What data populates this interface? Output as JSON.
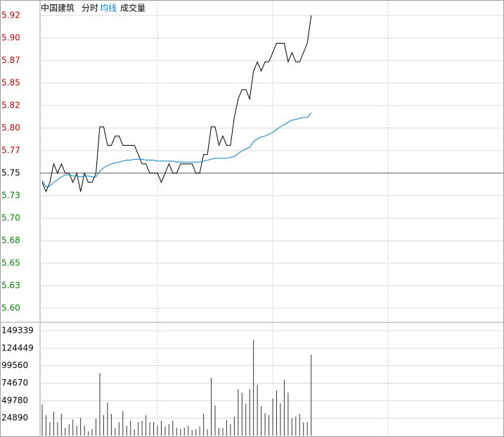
{
  "chart_data": [
    {
      "type": "line",
      "title": "中国建筑",
      "x": [
        0,
        2,
        4,
        6,
        8,
        10,
        12,
        14,
        16,
        18,
        20,
        22,
        24,
        26,
        28,
        30,
        32,
        34,
        36,
        38,
        40,
        42,
        44,
        46,
        48,
        50,
        52,
        54,
        56,
        58,
        60,
        62,
        64,
        66,
        68,
        70,
        72,
        74,
        76,
        78,
        80,
        82,
        84,
        86,
        88,
        90,
        92,
        94,
        96,
        98,
        100,
        102,
        104,
        106,
        108,
        110,
        112,
        114,
        116,
        118,
        120,
        122,
        124,
        126,
        128,
        130,
        132,
        134,
        136,
        138,
        140
      ],
      "xlim": [
        0,
        240
      ],
      "xticks": [
        60,
        120,
        180
      ],
      "series": [
        {
          "name": "分时",
          "color": "#000000",
          "values": [
            5.74,
            5.73,
            5.74,
            5.76,
            5.75,
            5.76,
            5.75,
            5.75,
            5.74,
            5.75,
            5.73,
            5.75,
            5.74,
            5.74,
            5.75,
            5.8,
            5.8,
            5.78,
            5.78,
            5.79,
            5.79,
            5.78,
            5.78,
            5.78,
            5.78,
            5.77,
            5.76,
            5.76,
            5.75,
            5.75,
            5.75,
            5.74,
            5.75,
            5.76,
            5.75,
            5.75,
            5.76,
            5.76,
            5.76,
            5.76,
            5.75,
            5.75,
            5.77,
            5.77,
            5.8,
            5.8,
            5.78,
            5.79,
            5.78,
            5.78,
            5.81,
            5.83,
            5.84,
            5.84,
            5.83,
            5.86,
            5.87,
            5.86,
            5.87,
            5.87,
            5.88,
            5.89,
            5.89,
            5.89,
            5.87,
            5.88,
            5.87,
            5.87,
            5.88,
            5.89,
            5.92
          ]
        },
        {
          "name": "均线",
          "color": "#0a7fc0",
          "values": [
            5.742,
            5.735,
            5.736,
            5.74,
            5.743,
            5.746,
            5.748,
            5.748,
            5.747,
            5.747,
            5.746,
            5.747,
            5.747,
            5.746,
            5.746,
            5.752,
            5.756,
            5.758,
            5.76,
            5.761,
            5.762,
            5.763,
            5.764,
            5.764,
            5.765,
            5.765,
            5.765,
            5.764,
            5.764,
            5.764,
            5.763,
            5.763,
            5.763,
            5.763,
            5.763,
            5.762,
            5.762,
            5.762,
            5.762,
            5.762,
            5.762,
            5.762,
            5.763,
            5.764,
            5.765,
            5.766,
            5.766,
            5.766,
            5.766,
            5.767,
            5.768,
            5.771,
            5.774,
            5.776,
            5.778,
            5.784,
            5.787,
            5.789,
            5.79,
            5.792,
            5.794,
            5.797,
            5.8,
            5.802,
            5.805,
            5.807,
            5.808,
            5.809,
            5.81,
            5.81,
            5.815
          ]
        }
      ],
      "ylim": [
        5.6043,
        5.92
      ],
      "base_value": 5.75,
      "up_color": "#c00000",
      "down_color": "#008000",
      "yticks": [
        5.92,
        {
          "value": 5.8957,
          "label": "5.90"
        },
        {
          "value": 5.8714,
          "label": "5.87"
        },
        {
          "value": 5.8471,
          "label": "5.85"
        },
        {
          "value": 5.8229,
          "label": "5.82"
        },
        {
          "value": 5.7986,
          "label": "5.80"
        },
        {
          "value": 5.7743,
          "label": "5.77"
        },
        5.75,
        {
          "value": 5.7257,
          "label": "5.73"
        },
        {
          "value": 5.7014,
          "label": "5.70"
        },
        {
          "value": 5.6771,
          "label": "5.68"
        },
        {
          "value": 5.6529,
          "label": "5.65"
        },
        {
          "value": 5.6286,
          "label": "5.63"
        },
        {
          "value": 5.6043,
          "label": "5.60"
        }
      ],
      "grid": true
    },
    {
      "type": "bar",
      "x": [
        0,
        2,
        4,
        6,
        8,
        10,
        12,
        14,
        16,
        18,
        20,
        22,
        24,
        26,
        28,
        30,
        32,
        34,
        36,
        38,
        40,
        42,
        44,
        46,
        48,
        50,
        52,
        54,
        56,
        58,
        60,
        62,
        64,
        66,
        68,
        70,
        72,
        74,
        76,
        78,
        80,
        82,
        84,
        86,
        88,
        90,
        92,
        94,
        96,
        98,
        100,
        102,
        104,
        106,
        108,
        110,
        112,
        114,
        116,
        118,
        120,
        122,
        124,
        126,
        128,
        130,
        132,
        134,
        136,
        138,
        140
      ],
      "xlim": [
        0,
        240
      ],
      "xticks": [
        60,
        120,
        180
      ],
      "series": [
        {
          "name": "成交量",
          "color": "#333333",
          "values": [
            44100,
            29100,
            19000,
            34100,
            19000,
            31100,
            11000,
            16000,
            23000,
            14000,
            25000,
            14000,
            6000,
            9000,
            24000,
            89200,
            29100,
            47100,
            31100,
            11000,
            19000,
            35100,
            14000,
            21000,
            9000,
            19000,
            21000,
            29100,
            19000,
            19000,
            14000,
            21000,
            13000,
            16000,
            21000,
            11000,
            9000,
            11000,
            14000,
            8000,
            9000,
            13000,
            31100,
            9000,
            82200,
            43100,
            11000,
            11000,
            22000,
            16000,
            27100,
            66100,
            61100,
            45100,
            66100,
            136300,
            72100,
            42100,
            32100,
            29100,
            53100,
            64100,
            46100,
            79200,
            61100,
            25000,
            27100,
            31100,
            19000,
            19000,
            115200
          ]
        }
      ],
      "ylim": [
        0,
        149339
      ],
      "yticks": [
        149339,
        124449,
        99560,
        74670,
        49780,
        24890
      ],
      "grid": true
    }
  ]
}
